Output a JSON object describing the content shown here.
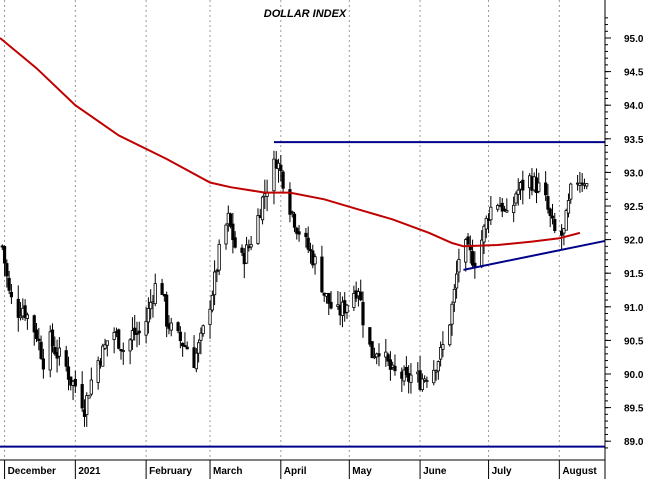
{
  "chart_data": {
    "type": "candlestick",
    "title": "DOLLAR INDEX",
    "xlabel": "",
    "ylabel": "",
    "ylim": [
      88.75,
      95.35
    ],
    "yticks": [
      "95.0",
      "94.5",
      "94.0",
      "93.5",
      "93.0",
      "92.5",
      "92.0",
      "91.5",
      "91.0",
      "90.5",
      "90.0",
      "89.5",
      "89.0"
    ],
    "ytick_values": [
      95.0,
      94.5,
      94.0,
      93.5,
      93.0,
      92.5,
      92.0,
      91.5,
      91.0,
      90.5,
      90.0,
      89.5,
      89.0
    ],
    "x_range": [
      "2020-11-29",
      "2021-08-21"
    ],
    "month_labels": [
      {
        "date": "2020-12-01",
        "label": "December"
      },
      {
        "date": "2021-01-01",
        "label": "2021"
      },
      {
        "date": "2021-02-01",
        "label": "February"
      },
      {
        "date": "2021-03-01",
        "label": "March"
      },
      {
        "date": "2021-04-01",
        "label": "April"
      },
      {
        "date": "2021-05-01",
        "label": "May"
      },
      {
        "date": "2021-06-01",
        "label": "June"
      },
      {
        "date": "2021-07-01",
        "label": "July"
      },
      {
        "date": "2021-08-01",
        "label": "August"
      }
    ],
    "grid": false,
    "colors": {
      "moving_average": "#c00000",
      "trendlines": "#00008b",
      "candles": "#000000",
      "background": "#ffffff"
    },
    "closes": [
      [
        "2020-11-30",
        91.9
      ],
      [
        "2020-12-03",
        91.2
      ],
      [
        "2020-12-06",
        90.9
      ],
      [
        "2020-12-09",
        91.0
      ],
      [
        "2020-12-12",
        90.8
      ],
      [
        "2020-12-15",
        90.6
      ],
      [
        "2020-12-18",
        90.2
      ],
      [
        "2020-12-21",
        90.5
      ],
      [
        "2020-12-24",
        90.3
      ],
      [
        "2020-12-27",
        90.2
      ],
      [
        "2020-12-30",
        89.9
      ],
      [
        "2021-01-02",
        89.8
      ],
      [
        "2021-01-05",
        89.5
      ],
      [
        "2021-01-08",
        89.9
      ],
      [
        "2021-01-11",
        90.2
      ],
      [
        "2021-01-14",
        90.4
      ],
      [
        "2021-01-17",
        90.7
      ],
      [
        "2021-01-20",
        90.5
      ],
      [
        "2021-01-23",
        90.3
      ],
      [
        "2021-01-26",
        90.6
      ],
      [
        "2021-01-29",
        90.6
      ],
      [
        "2021-02-01",
        90.8
      ],
      [
        "2021-02-04",
        91.2
      ],
      [
        "2021-02-07",
        91.5
      ],
      [
        "2021-02-10",
        90.8
      ],
      [
        "2021-02-13",
        90.6
      ],
      [
        "2021-02-16",
        90.5
      ],
      [
        "2021-02-19",
        90.4
      ],
      [
        "2021-02-22",
        90.2
      ],
      [
        "2021-02-25",
        90.5
      ],
      [
        "2021-02-28",
        90.9
      ],
      [
        "2021-03-03",
        91.4
      ],
      [
        "2021-03-06",
        92.0
      ],
      [
        "2021-03-09",
        92.3
      ],
      [
        "2021-03-12",
        91.9
      ],
      [
        "2021-03-15",
        91.7
      ],
      [
        "2021-03-18",
        91.9
      ],
      [
        "2021-03-21",
        92.2
      ],
      [
        "2021-03-24",
        92.6
      ],
      [
        "2021-03-27",
        92.9
      ],
      [
        "2021-03-30",
        93.2
      ],
      [
        "2021-04-02",
        92.9
      ],
      [
        "2021-04-05",
        92.5
      ],
      [
        "2021-04-08",
        92.2
      ],
      [
        "2021-04-11",
        92.0
      ],
      [
        "2021-04-14",
        91.8
      ],
      [
        "2021-04-17",
        91.6
      ],
      [
        "2021-04-20",
        91.2
      ],
      [
        "2021-04-23",
        91.0
      ],
      [
        "2021-04-26",
        90.9
      ],
      [
        "2021-04-29",
        91.0
      ],
      [
        "2021-05-02",
        91.2
      ],
      [
        "2021-05-05",
        91.3
      ],
      [
        "2021-05-08",
        90.6
      ],
      [
        "2021-05-11",
        90.3
      ],
      [
        "2021-05-14",
        90.4
      ],
      [
        "2021-05-17",
        90.2
      ],
      [
        "2021-05-20",
        90.0
      ],
      [
        "2021-05-23",
        90.0
      ],
      [
        "2021-05-26",
        89.9
      ],
      [
        "2021-05-29",
        90.0
      ],
      [
        "2021-06-01",
        89.9
      ],
      [
        "2021-06-04",
        90.0
      ],
      [
        "2021-06-07",
        90.1
      ],
      [
        "2021-06-10",
        90.3
      ],
      [
        "2021-06-13",
        90.6
      ],
      [
        "2021-06-16",
        91.2
      ],
      [
        "2021-06-19",
        92.0
      ],
      [
        "2021-06-22",
        91.8
      ],
      [
        "2021-06-25",
        91.7
      ],
      [
        "2021-06-28",
        92.0
      ],
      [
        "2021-07-01",
        92.4
      ],
      [
        "2021-07-04",
        92.6
      ],
      [
        "2021-07-07",
        92.5
      ],
      [
        "2021-07-10",
        92.2
      ],
      [
        "2021-07-13",
        92.7
      ],
      [
        "2021-07-16",
        92.8
      ],
      [
        "2021-07-19",
        92.9
      ],
      [
        "2021-07-22",
        92.8
      ],
      [
        "2021-07-25",
        92.7
      ],
      [
        "2021-07-28",
        92.3
      ],
      [
        "2021-07-31",
        92.0
      ],
      [
        "2021-08-03",
        92.1
      ],
      [
        "2021-08-06",
        92.7
      ],
      [
        "2021-08-09",
        92.9
      ],
      [
        "2021-08-12",
        92.9
      ],
      [
        "2021-08-15",
        92.6
      ]
    ],
    "moving_average": [
      [
        "2020-11-29",
        95.0
      ],
      [
        "2020-12-15",
        94.55
      ],
      [
        "2021-01-01",
        94.0
      ],
      [
        "2021-01-20",
        93.55
      ],
      [
        "2021-02-10",
        93.2
      ],
      [
        "2021-03-01",
        92.85
      ],
      [
        "2021-03-10",
        92.78
      ],
      [
        "2021-03-25",
        92.7
      ],
      [
        "2021-04-05",
        92.7
      ],
      [
        "2021-04-20",
        92.6
      ],
      [
        "2021-05-05",
        92.45
      ],
      [
        "2021-05-20",
        92.3
      ],
      [
        "2021-06-05",
        92.1
      ],
      [
        "2021-06-15",
        91.95
      ],
      [
        "2021-06-20",
        91.9
      ],
      [
        "2021-07-05",
        91.92
      ],
      [
        "2021-07-20",
        91.97
      ],
      [
        "2021-08-01",
        92.02
      ],
      [
        "2021-08-10",
        92.1
      ]
    ],
    "trendlines": [
      {
        "name": "resistance",
        "from": [
          "2021-03-29",
          93.45
        ],
        "to": [
          "2021-08-21",
          93.45
        ]
      },
      {
        "name": "rising-support",
        "from": [
          "2021-06-20",
          91.55
        ],
        "to": [
          "2021-08-21",
          91.98
        ]
      },
      {
        "name": "lower-support",
        "from": [
          "2020-11-29",
          88.92
        ],
        "to": [
          "2021-08-21",
          88.92
        ]
      }
    ]
  }
}
